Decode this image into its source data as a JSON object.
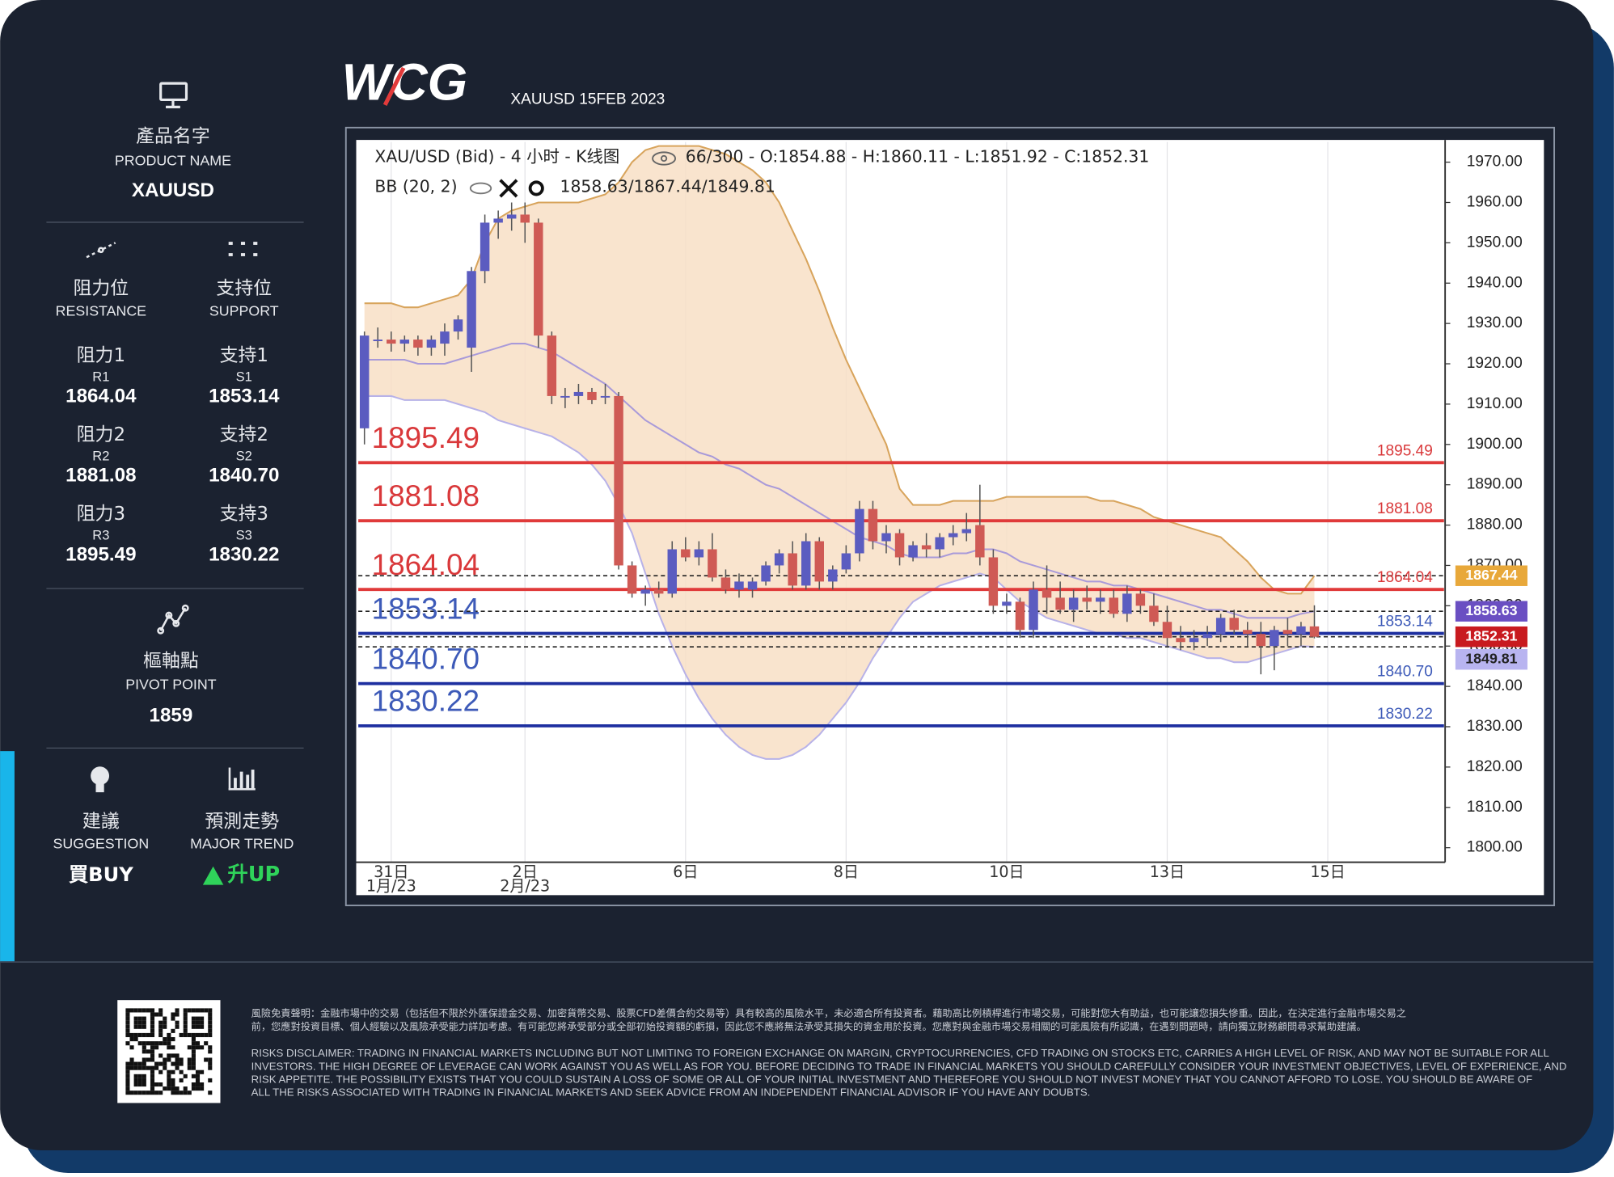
{
  "header": {
    "logo": "WCG",
    "subtitle": "XAUUSD 15FEB 2023"
  },
  "sidebar": {
    "product": {
      "label_zh": "產品名字",
      "label_en": "PRODUCT NAME",
      "value": "XAUUSD"
    },
    "resistance": {
      "label_zh": "阻力位",
      "label_en": "RESISTANCE",
      "levels": [
        {
          "label_zh": "阻力1",
          "code": "R1",
          "value": "1864.04"
        },
        {
          "label_zh": "阻力2",
          "code": "R2",
          "value": "1881.08"
        },
        {
          "label_zh": "阻力3",
          "code": "R3",
          "value": "1895.49"
        }
      ]
    },
    "support": {
      "label_zh": "支持位",
      "label_en": "SUPPORT",
      "levels": [
        {
          "label_zh": "支持1",
          "code": "S1",
          "value": "1853.14"
        },
        {
          "label_zh": "支持2",
          "code": "S2",
          "value": "1840.70"
        },
        {
          "label_zh": "支持3",
          "code": "S3",
          "value": "1830.22"
        }
      ]
    },
    "pivot": {
      "label_zh": "樞軸點",
      "label_en": "PIVOT POINT",
      "value": "1859"
    },
    "suggestion": {
      "label_zh": "建議",
      "label_en": "SUGGESTION",
      "value": "買BUY"
    },
    "trend": {
      "label_zh": "預測走勢",
      "label_en": "MAJOR TREND",
      "value": "升UP"
    }
  },
  "chart_data": {
    "type": "candlestick",
    "title": "XAU/USD (Bid) - 4 小时 - K线图",
    "info": "66/300 - O:1854.88 - H:1860.11 - L:1851.92 - C:1852.31",
    "indicator": "BB (20, 2)",
    "indicator_values": "1858.63/1867.44/1849.81",
    "categories": [
      null,
      null,
      "31日",
      null,
      null,
      null,
      null,
      null,
      null,
      null,
      null,
      null,
      "2日",
      null,
      null,
      null,
      null,
      null,
      null,
      null,
      null,
      null,
      null,
      null,
      "6日",
      null,
      null,
      null,
      null,
      null,
      null,
      null,
      null,
      null,
      null,
      null,
      "8日",
      null,
      null,
      null,
      null,
      null,
      null,
      null,
      null,
      null,
      null,
      null,
      "10日",
      null,
      null,
      null,
      null,
      null,
      null,
      null,
      null,
      null,
      null,
      null,
      "13日",
      null,
      null,
      null,
      null,
      null,
      null,
      null,
      null,
      null,
      null,
      null,
      "15日"
    ],
    "category_months": [
      null,
      null,
      "1月/23",
      null,
      null,
      null,
      null,
      null,
      null,
      null,
      null,
      null,
      "2月/23",
      null,
      null,
      null,
      null,
      null,
      null,
      null,
      null,
      null,
      null,
      null,
      null,
      null,
      null,
      null,
      null,
      null,
      null,
      null,
      null,
      null,
      null,
      null,
      null,
      null,
      null,
      null,
      null,
      null,
      null,
      null,
      null,
      null,
      null,
      null,
      null,
      null,
      null,
      null,
      null,
      null,
      null,
      null,
      null,
      null,
      null,
      null,
      null,
      null,
      null,
      null,
      null,
      null,
      null,
      null,
      null,
      null,
      null,
      null,
      null
    ],
    "candles": [
      [
        1904,
        1928,
        1900,
        1927
      ],
      [
        1926,
        1929,
        1924,
        1926
      ],
      [
        1926,
        1928,
        1923,
        1925
      ],
      [
        1925,
        1927,
        1923,
        1926
      ],
      [
        1926,
        1927,
        1922,
        1924
      ],
      [
        1924,
        1927,
        1922,
        1926
      ],
      [
        1925,
        1930,
        1922,
        1928
      ],
      [
        1928,
        1932,
        1926,
        1931
      ],
      [
        1924,
        1944,
        1918,
        1943
      ],
      [
        1943,
        1957,
        1940,
        1955
      ],
      [
        1955,
        1958,
        1951,
        1956
      ],
      [
        1956,
        1960,
        1953,
        1957
      ],
      [
        1957,
        1960,
        1950,
        1955
      ],
      [
        1955,
        1956,
        1924,
        1927
      ],
      [
        1927,
        1928,
        1910,
        1912
      ],
      [
        1912,
        1914,
        1909,
        1912
      ],
      [
        1912,
        1915,
        1910,
        1913
      ],
      [
        1913,
        1914,
        1910,
        1911
      ],
      [
        1912,
        1915,
        1910,
        1912
      ],
      [
        1912,
        1913,
        1869,
        1870
      ],
      [
        1870,
        1871,
        1862,
        1863
      ],
      [
        1863,
        1865,
        1860,
        1864
      ],
      [
        1864,
        1866,
        1862,
        1863
      ],
      [
        1863,
        1876,
        1862,
        1874
      ],
      [
        1874,
        1877,
        1871,
        1872
      ],
      [
        1872,
        1876,
        1870,
        1874
      ],
      [
        1874,
        1878,
        1866,
        1867
      ],
      [
        1867,
        1869,
        1863,
        1864
      ],
      [
        1864,
        1868,
        1862,
        1866
      ],
      [
        1864,
        1867,
        1862,
        1866
      ],
      [
        1866,
        1871,
        1865,
        1870
      ],
      [
        1870,
        1874,
        1868,
        1873
      ],
      [
        1873,
        1876,
        1864,
        1865
      ],
      [
        1865,
        1878,
        1864,
        1876
      ],
      [
        1876,
        1877,
        1864,
        1866
      ],
      [
        1866,
        1870,
        1864,
        1869
      ],
      [
        1869,
        1875,
        1868,
        1873
      ],
      [
        1873,
        1886,
        1871,
        1884
      ],
      [
        1884,
        1886,
        1874,
        1876
      ],
      [
        1876,
        1880,
        1873,
        1878
      ],
      [
        1878,
        1879,
        1870,
        1872
      ],
      [
        1872,
        1876,
        1871,
        1875
      ],
      [
        1875,
        1878,
        1872,
        1874
      ],
      [
        1874,
        1878,
        1872,
        1877
      ],
      [
        1877,
        1880,
        1875,
        1878
      ],
      [
        1878,
        1883,
        1876,
        1879
      ],
      [
        1880,
        1890,
        1870,
        1872
      ],
      [
        1872,
        1874,
        1858,
        1860
      ],
      [
        1860,
        1863,
        1858,
        1861
      ],
      [
        1861,
        1862,
        1852,
        1854
      ],
      [
        1854,
        1866,
        1852,
        1864
      ],
      [
        1864,
        1870,
        1858,
        1862
      ],
      [
        1862,
        1866,
        1858,
        1859
      ],
      [
        1859,
        1864,
        1856,
        1862
      ],
      [
        1862,
        1865,
        1859,
        1861
      ],
      [
        1861,
        1864,
        1858,
        1862
      ],
      [
        1862,
        1864,
        1857,
        1858
      ],
      [
        1858,
        1865,
        1856,
        1863
      ],
      [
        1863,
        1864,
        1858,
        1860
      ],
      [
        1860,
        1863,
        1855,
        1856
      ],
      [
        1856,
        1860,
        1850,
        1852
      ],
      [
        1852,
        1855,
        1849,
        1851
      ],
      [
        1851,
        1854,
        1849,
        1852
      ],
      [
        1852,
        1855,
        1850,
        1853
      ],
      [
        1853,
        1858,
        1851,
        1857
      ],
      [
        1857,
        1859,
        1853,
        1854
      ],
      [
        1854,
        1856,
        1850,
        1853
      ],
      [
        1853,
        1856,
        1843,
        1850
      ],
      [
        1850,
        1855,
        1844,
        1854
      ],
      [
        1854,
        1857,
        1850,
        1853
      ],
      [
        1853,
        1856,
        1850,
        1854.88
      ],
      [
        1854.88,
        1860.11,
        1851.92,
        1852.31
      ],
      null
    ],
    "up_color": "#5b5cc0",
    "down_color": "#cf5a55",
    "bands": {
      "upper": [
        1935,
        1935,
        1935,
        1934,
        1934,
        1935,
        1936,
        1937,
        1941,
        1950,
        1956,
        1958,
        1959,
        1960,
        1960,
        1960,
        1960,
        1961,
        1962,
        1965,
        1970,
        1973,
        1974,
        1974,
        1974,
        1974,
        1973,
        1972,
        1970,
        1968,
        1965,
        1960,
        1953,
        1946,
        1938,
        1929,
        1921,
        1914,
        1907,
        1900,
        1889,
        1885,
        1885,
        1885,
        1886,
        1886,
        1886,
        1886,
        1887,
        1887,
        1887,
        1887,
        1887,
        1887,
        1887,
        1886,
        1886,
        1885,
        1884,
        1882,
        1881,
        1880,
        1879,
        1878,
        1877,
        1874,
        1871,
        1867,
        1864,
        1863,
        1863,
        1867.44,
        null
      ],
      "middle": [
        1921,
        1921,
        1921,
        1921,
        1920,
        1920,
        1920,
        1921,
        1922,
        1923,
        1924,
        1925,
        1925,
        1924,
        1923,
        1921,
        1919,
        1917,
        1915,
        1912,
        1909,
        1906,
        1904,
        1902,
        1900,
        1898,
        1897,
        1895,
        1894,
        1892,
        1890,
        1889,
        1887,
        1885,
        1883,
        1881,
        1879,
        1877,
        1876,
        1875,
        1873,
        1872,
        1872,
        1872,
        1873,
        1873,
        1874,
        1874,
        1873,
        1871,
        1870,
        1869,
        1868,
        1867,
        1866,
        1866,
        1865,
        1865,
        1864,
        1863,
        1862,
        1861,
        1860,
        1859,
        1859,
        1858,
        1857,
        1857,
        1857,
        1857,
        1858,
        1858.63,
        null
      ],
      "lower": [
        1912,
        1912,
        1912,
        1911,
        1911,
        1911,
        1911,
        1910,
        1909,
        1908,
        1906,
        1905,
        1904,
        1903,
        1902,
        1900,
        1898,
        1895,
        1891,
        1885,
        1878,
        1868,
        1858,
        1850,
        1843,
        1837,
        1832,
        1828,
        1825,
        1823,
        1822,
        1822,
        1823,
        1825,
        1828,
        1832,
        1836,
        1841,
        1847,
        1852,
        1857,
        1861,
        1863,
        1865,
        1866,
        1867,
        1868,
        1867,
        1864,
        1861,
        1859,
        1857,
        1856,
        1855,
        1854,
        1853,
        1853,
        1852,
        1852,
        1851,
        1850,
        1849,
        1848,
        1847,
        1847,
        1846,
        1846,
        1847,
        1848,
        1849,
        1850,
        1849.81,
        null
      ],
      "fill": "#f8dfc6",
      "upper_color": "#d8a45c",
      "middle_color": "#a99ad9",
      "lower_color": "#b8b2e8"
    },
    "levels": [
      {
        "value": 1895.49,
        "label": "1895.49",
        "color": "#e03a3a"
      },
      {
        "value": 1881.08,
        "label": "1881.08",
        "color": "#e03a3a"
      },
      {
        "value": 1864.04,
        "label": "1864.04",
        "color": "#e03a3a"
      },
      {
        "value": 1853.14,
        "label": "1853.14",
        "color": "#1d2fa0"
      },
      {
        "value": 1840.7,
        "label": "1840.70",
        "color": "#1d2fa0"
      },
      {
        "value": 1830.22,
        "label": "1830.22",
        "color": "#1d2fa0"
      }
    ],
    "level_label_colors": {
      "#e03a3a": "#d9383a",
      "#1d2fa0": "#3d5ab8"
    },
    "price_tags": [
      {
        "value": 1867.44,
        "label": "1867.44",
        "color": "#e8a83a"
      },
      {
        "value": 1858.63,
        "label": "1858.63",
        "color": "#6a4fc2"
      },
      {
        "value": 1852.31,
        "label": "1852.31",
        "color": "#c81a1f"
      },
      {
        "value": 1849.81,
        "label": "1849.81",
        "color": "#b8b4f0"
      }
    ],
    "ylim": [
      1796.4,
      1975
    ],
    "yticks": [
      {
        "value": 1800,
        "label": "1800.00"
      },
      {
        "value": 1810,
        "label": "1810.00"
      },
      {
        "value": 1820,
        "label": "1820.00"
      },
      {
        "value": 1830,
        "label": "1830.00"
      },
      {
        "value": 1840,
        "label": "1840.00"
      },
      {
        "value": 1850,
        "label": "1850.00"
      },
      {
        "value": 1860,
        "label": "1860.00"
      },
      {
        "value": 1870,
        "label": "1870.00"
      },
      {
        "value": 1880,
        "label": "1880.00"
      },
      {
        "value": 1890,
        "label": "1890.00"
      },
      {
        "value": 1900,
        "label": "1900.00"
      },
      {
        "value": 1910,
        "label": "1910.00"
      },
      {
        "value": 1920,
        "label": "1920.00"
      },
      {
        "value": 1930,
        "label": "1930.00"
      },
      {
        "value": 1940,
        "label": "1940.00"
      },
      {
        "value": 1950,
        "label": "1950.00"
      },
      {
        "value": 1960,
        "label": "1960.00"
      },
      {
        "value": 1970,
        "label": "1970.00"
      }
    ],
    "grid": "x"
  },
  "disclaimer": {
    "zh": [
      "風險免責聲明：金融市場中的交易（包括但不限於外匯保證金交易、加密貨幣交易、股票CFD差價合約交易等）具有較高的風險水平，未必適合所有投資者。藉助高比例槓桿進行市場交易，可能對您大有助益，也可能讓您損失慘重。因此，在決定進行金融市場交易之",
      "前，您應對投資目標、個人經驗以及風險承受能力詳加考慮。有可能您將承受部分或全部初始投資額的虧損，因此您不應將無法承受其損失的資金用於投資。您應對與金融市場交易相關的可能風險有所認識，在遇到問題時，請向獨立財務顧問尋求幫助建議。"
    ],
    "en": [
      "RISKS DISCLAIMER: TRADING IN FINANCIAL MARKETS INCLUDING BUT NOT LIMITING TO FOREIGN EXCHANGE ON MARGIN, CRYPTOCURRENCIES, CFD TRADING ON STOCKS ETC, CARRIES A HIGH LEVEL OF RISK, AND MAY NOT BE SUITABLE FOR ALL",
      "INVESTORS. THE HIGH DEGREE OF LEVERAGE CAN WORK AGAINST YOU AS WELL AS FOR YOU. BEFORE DECIDING TO TRADE IN FINANCIAL MARKETS YOU SHOULD CAREFULLY CONSIDER YOUR INVESTMENT OBJECTIVES, LEVEL OF EXPERIENCE, AND",
      "RISK APPETITE. THE POSSIBILITY EXISTS THAT YOU COULD SUSTAIN A LOSS OF SOME OR ALL OF YOUR INITIAL INVESTMENT AND THEREFORE YOU SHOULD NOT INVEST MONEY THAT YOU CANNOT AFFORD TO LOSE. YOU SHOULD BE AWARE OF",
      "ALL THE RISKS ASSOCIATED WITH TRADING IN FINANCIAL MARKETS AND SEEK ADVICE FROM AN INDEPENDENT FINANCIAL ADVISOR IF YOU HAVE ANY DOUBTS."
    ]
  }
}
